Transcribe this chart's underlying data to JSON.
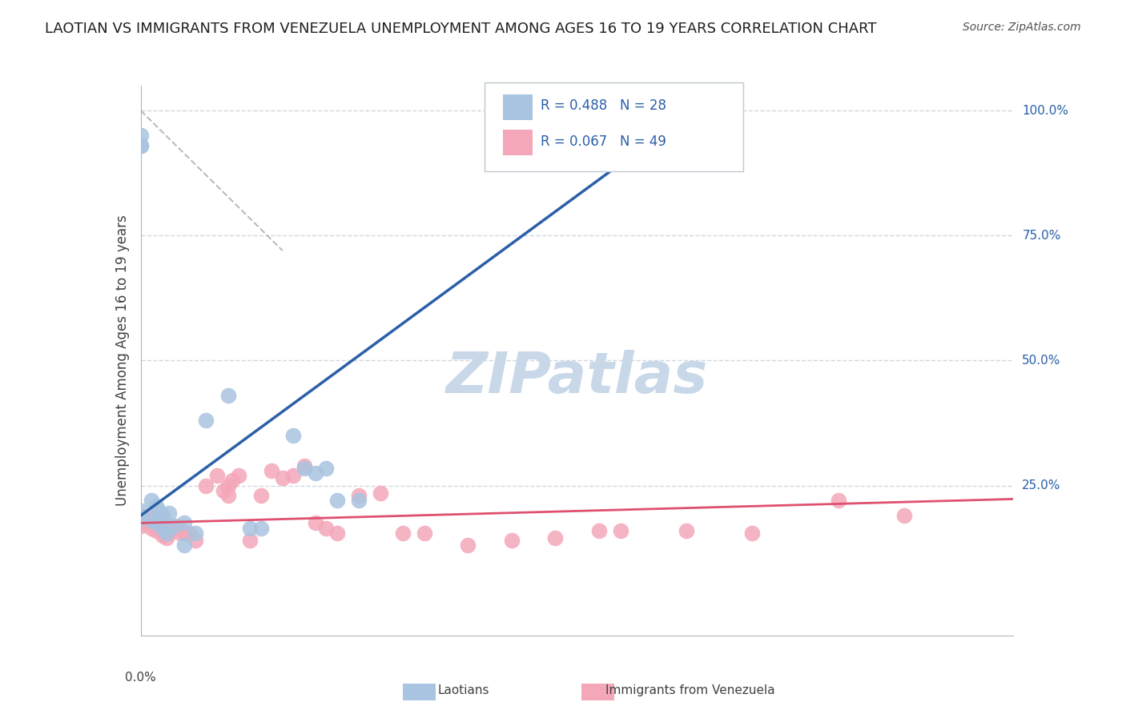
{
  "title": "LAOTIAN VS IMMIGRANTS FROM VENEZUELA UNEMPLOYMENT AMONG AGES 16 TO 19 YEARS CORRELATION CHART",
  "source": "Source: ZipAtlas.com",
  "ylabel": "Unemployment Among Ages 16 to 19 years",
  "xmin": 0.0,
  "xmax": 0.4,
  "ymin": -0.05,
  "ymax": 1.05,
  "laotian_R": 0.488,
  "laotian_N": 28,
  "venezuela_R": 0.067,
  "venezuela_N": 49,
  "laotian_color": "#a8c4e0",
  "laotian_line_color": "#2b5fa8",
  "venezuela_color": "#f4a7b9",
  "venezuela_line_color": "#e05070",
  "watermark_color": "#c8d8e8",
  "background_color": "#ffffff",
  "grid_color": "#d0d8e0",
  "legend_box_color_laotian": "#a8c4e0",
  "legend_box_color_venezuela": "#f4a7b9",
  "legend_text_color": "#2b5fa8",
  "laotian_x": [
    0.0,
    0.0,
    0.0,
    0.0,
    0.0,
    0.005,
    0.005,
    0.007,
    0.007,
    0.008,
    0.01,
    0.01,
    0.012,
    0.013,
    0.015,
    0.02,
    0.02,
    0.025,
    0.03,
    0.04,
    0.05,
    0.055,
    0.07,
    0.075,
    0.08,
    0.085,
    0.09,
    0.1
  ],
  "laotian_y": [
    0.93,
    0.93,
    0.95,
    0.2,
    0.185,
    0.22,
    0.18,
    0.21,
    0.175,
    0.2,
    0.19,
    0.165,
    0.155,
    0.195,
    0.17,
    0.175,
    0.13,
    0.155,
    0.38,
    0.43,
    0.165,
    0.165,
    0.35,
    0.285,
    0.275,
    0.285,
    0.22,
    0.22
  ],
  "venezuela_x": [
    0.0,
    0.0,
    0.0,
    0.005,
    0.005,
    0.007,
    0.007,
    0.008,
    0.009,
    0.01,
    0.01,
    0.01,
    0.012,
    0.013,
    0.015,
    0.017,
    0.018,
    0.02,
    0.022,
    0.025,
    0.03,
    0.035,
    0.038,
    0.04,
    0.04,
    0.042,
    0.045,
    0.05,
    0.055,
    0.06,
    0.065,
    0.07,
    0.075,
    0.08,
    0.085,
    0.09,
    0.1,
    0.11,
    0.12,
    0.13,
    0.15,
    0.17,
    0.19,
    0.21,
    0.22,
    0.25,
    0.28,
    0.32,
    0.35
  ],
  "venezuela_y": [
    0.17,
    0.19,
    0.175,
    0.185,
    0.165,
    0.17,
    0.16,
    0.175,
    0.165,
    0.18,
    0.17,
    0.15,
    0.145,
    0.155,
    0.165,
    0.17,
    0.155,
    0.155,
    0.155,
    0.14,
    0.25,
    0.27,
    0.24,
    0.25,
    0.23,
    0.26,
    0.27,
    0.14,
    0.23,
    0.28,
    0.265,
    0.27,
    0.29,
    0.175,
    0.165,
    0.155,
    0.23,
    0.235,
    0.155,
    0.155,
    0.13,
    0.14,
    0.145,
    0.16,
    0.16,
    0.16,
    0.155,
    0.22,
    0.19
  ],
  "lao_slope": 3.2,
  "lao_intercept": 0.19,
  "ven_slope": 0.12,
  "ven_intercept": 0.175,
  "right_ticks": [
    [
      1.0,
      "100.0%"
    ],
    [
      0.75,
      "75.0%"
    ],
    [
      0.5,
      "50.0%"
    ],
    [
      0.25,
      "25.0%"
    ]
  ]
}
